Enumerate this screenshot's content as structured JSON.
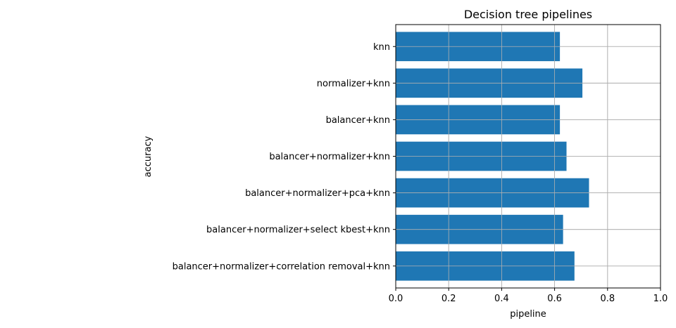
{
  "chart_data": {
    "type": "bar",
    "orientation": "horizontal",
    "title": "Decision tree pipelines",
    "xlabel": "pipeline",
    "ylabel": "accuracy",
    "categories": [
      "knn",
      "normalizer+knn",
      "balancer+knn",
      "balancer+normalizer+knn",
      "balancer+normalizer+pca+knn",
      "balancer+normalizer+select kbest+knn",
      "balancer+normalizer+correlation removal+knn"
    ],
    "values": [
      0.62,
      0.705,
      0.62,
      0.645,
      0.73,
      0.632,
      0.675
    ],
    "xlim": [
      0,
      1.0
    ],
    "xticks": [
      0.0,
      0.2,
      0.4,
      0.6,
      0.8,
      1.0
    ],
    "xtick_labels": [
      "0.0",
      "0.2",
      "0.4",
      "0.6",
      "0.8",
      "1.0"
    ],
    "grid": true,
    "bar_color": "#1f77b4",
    "grid_color": "#b0b0b0"
  }
}
